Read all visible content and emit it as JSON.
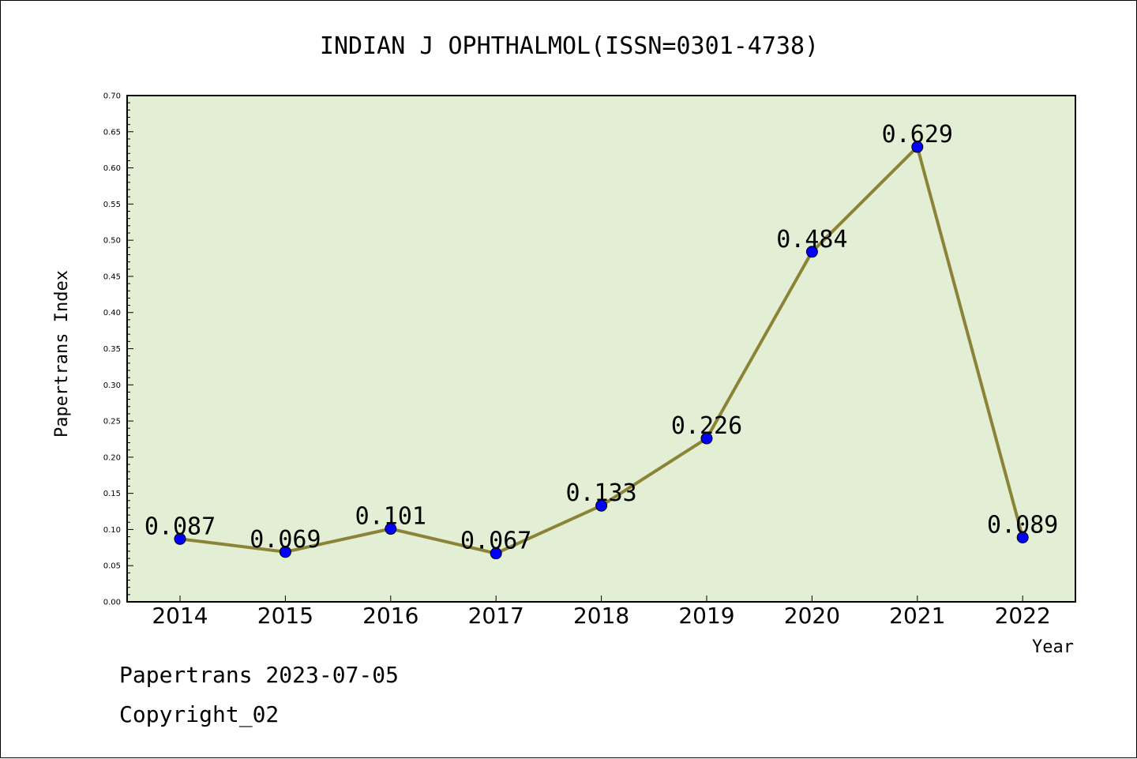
{
  "chart_data": {
    "type": "line",
    "title": "INDIAN J OPHTHALMOL(ISSN=0301-4738)",
    "xlabel": "Year",
    "ylabel": "Papertrans Index",
    "categories": [
      "2014",
      "2015",
      "2016",
      "2017",
      "2018",
      "2019",
      "2020",
      "2021",
      "2022"
    ],
    "values": [
      0.087,
      0.069,
      0.101,
      0.067,
      0.133,
      0.226,
      0.484,
      0.629,
      0.089
    ],
    "data_labels": [
      "0.087",
      "0.069",
      "0.101",
      "0.067",
      "0.133",
      "0.226",
      "0.484",
      "0.629",
      "0.089"
    ],
    "yticks": [
      "0.00",
      "0.05",
      "0.10",
      "0.15",
      "0.20",
      "0.25",
      "0.30",
      "0.35",
      "0.40",
      "0.45",
      "0.50",
      "0.55",
      "0.60",
      "0.65",
      "0.70"
    ],
    "ylim": [
      0,
      0.7
    ],
    "grid": false,
    "legend": "none",
    "colors": {
      "plot_background": "#e2efd4",
      "line": "#8b8336",
      "marker": "#0000ff"
    }
  },
  "footer": {
    "line1": "Papertrans 2023-07-05",
    "line2": "Copyright_02"
  }
}
